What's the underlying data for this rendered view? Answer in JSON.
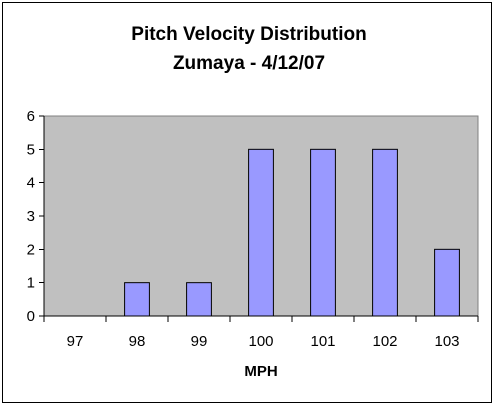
{
  "chart_data": {
    "type": "bar",
    "title": "Pitch Velocity Distribution",
    "subtitle": "Zumaya - 4/12/07",
    "xlabel": "MPH",
    "ylabel": "",
    "categories": [
      "97",
      "98",
      "99",
      "100",
      "101",
      "102",
      "103"
    ],
    "values": [
      0,
      1,
      1,
      5,
      5,
      5,
      2
    ],
    "ylim": [
      0,
      6
    ],
    "yticks": [
      "0",
      "1",
      "2",
      "3",
      "4",
      "5",
      "6"
    ],
    "grid": false,
    "legend": "none",
    "colors": {
      "bar_fill": "#9999ff",
      "bar_stroke": "#000000",
      "plot_background": "#c0c0c0"
    }
  }
}
